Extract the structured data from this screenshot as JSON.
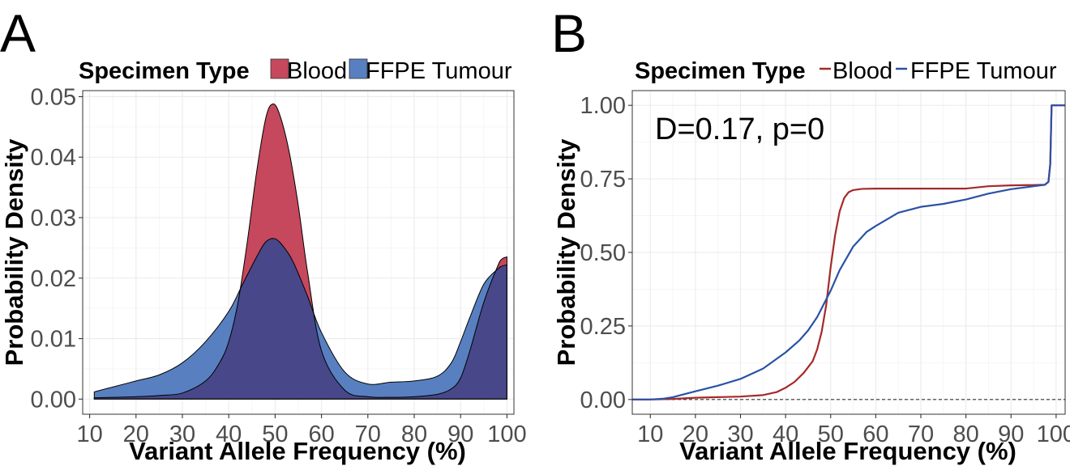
{
  "chart_data": [
    {
      "panel_label": "A",
      "type": "area",
      "title": "",
      "xlabel": "Variant Allele Frequency (%)",
      "ylabel": "Probability Density",
      "xlim": [
        10,
        100
      ],
      "ylim": [
        0,
        0.05
      ],
      "x_ticks": [
        "10",
        "20",
        "30",
        "40",
        "50",
        "60",
        "70",
        "80",
        "90",
        "100"
      ],
      "y_ticks": [
        "0.00",
        "0.01",
        "0.02",
        "0.03",
        "0.04",
        "0.05"
      ],
      "grid": true,
      "legend": {
        "title": "Specimen Type",
        "position": "top",
        "entries": [
          {
            "label": "Blood",
            "color": "#c5485c"
          },
          {
            "label": "FFPE Tumour",
            "color": "#5880c0"
          }
        ]
      },
      "overlap_color": "#47478a",
      "series": [
        {
          "name": "Blood",
          "color": "#c5485c",
          "x": [
            11,
            15,
            20,
            25,
            30,
            35,
            38,
            40,
            42,
            44,
            46,
            48,
            49.5,
            51,
            53,
            55,
            57,
            60,
            65,
            70,
            75,
            80,
            85,
            88,
            90,
            92,
            95,
            98,
            99,
            100
          ],
          "values": [
            0.0002,
            0.0003,
            0.0004,
            0.0006,
            0.001,
            0.003,
            0.006,
            0.0095,
            0.016,
            0.026,
            0.0375,
            0.0465,
            0.0488,
            0.047,
            0.041,
            0.032,
            0.021,
            0.008,
            0.0015,
            0.0004,
            0.0003,
            0.0004,
            0.0008,
            0.0017,
            0.0035,
            0.008,
            0.016,
            0.022,
            0.0232,
            0.0235
          ]
        },
        {
          "name": "FFPE Tumour",
          "color": "#5880c0",
          "x": [
            11,
            15,
            20,
            25,
            30,
            35,
            40,
            43,
            46,
            48,
            50,
            52,
            54,
            57,
            60,
            65,
            70,
            75,
            80,
            85,
            88,
            90,
            92,
            95,
            98,
            99,
            100
          ],
          "values": [
            0.0012,
            0.002,
            0.003,
            0.004,
            0.006,
            0.0095,
            0.0145,
            0.019,
            0.0235,
            0.026,
            0.0265,
            0.025,
            0.0225,
            0.017,
            0.011,
            0.0045,
            0.0025,
            0.0028,
            0.003,
            0.0038,
            0.006,
            0.0095,
            0.0135,
            0.019,
            0.0215,
            0.022,
            0.0222
          ]
        }
      ]
    },
    {
      "panel_label": "B",
      "type": "line",
      "title": "",
      "xlabel": "Variant Allele Frequency (%)",
      "ylabel": "Probability Density",
      "xlim": [
        6,
        102
      ],
      "ylim": [
        0,
        1
      ],
      "x_ticks": [
        "10",
        "20",
        "30",
        "40",
        "50",
        "60",
        "70",
        "80",
        "90",
        "100"
      ],
      "y_ticks": [
        "0.00",
        "0.25",
        "0.50",
        "0.75",
        "1.00"
      ],
      "grid": true,
      "annotation": "D=0.17, p=0",
      "reference_line": {
        "y": 0,
        "style": "dashed"
      },
      "legend": {
        "title": "Specimen Type",
        "position": "top",
        "entries": [
          {
            "label": "Blood",
            "color": "#a52a2a"
          },
          {
            "label": "FFPE Tumour",
            "color": "#2a52a5"
          }
        ]
      },
      "series": [
        {
          "name": "Blood",
          "color": "#a52a2a",
          "x": [
            6,
            10,
            15,
            20,
            25,
            30,
            35,
            38,
            40,
            42,
            44,
            46,
            47,
            48,
            49,
            50,
            51,
            52,
            53,
            54,
            55,
            57,
            60,
            70,
            80,
            85,
            90,
            95,
            97.5,
            98.3,
            98.7,
            99,
            100,
            102
          ],
          "values": [
            0,
            0,
            0.002,
            0.006,
            0.008,
            0.01,
            0.015,
            0.025,
            0.04,
            0.06,
            0.09,
            0.13,
            0.17,
            0.23,
            0.32,
            0.45,
            0.56,
            0.64,
            0.685,
            0.705,
            0.712,
            0.716,
            0.717,
            0.717,
            0.717,
            0.725,
            0.728,
            0.729,
            0.73,
            0.74,
            0.8,
            1.0,
            1.0,
            1.0
          ]
        },
        {
          "name": "FFPE Tumour",
          "color": "#2a52a5",
          "x": [
            6,
            10,
            13,
            15,
            18,
            20,
            25,
            30,
            35,
            40,
            43,
            45,
            47,
            48,
            50,
            52,
            55,
            58,
            60,
            65,
            70,
            75,
            80,
            85,
            90,
            95,
            97.5,
            98.3,
            98.7,
            99,
            100,
            102
          ],
          "values": [
            0,
            0,
            0.003,
            0.008,
            0.02,
            0.028,
            0.047,
            0.07,
            0.105,
            0.16,
            0.2,
            0.235,
            0.28,
            0.31,
            0.37,
            0.44,
            0.52,
            0.57,
            0.59,
            0.635,
            0.655,
            0.665,
            0.68,
            0.7,
            0.715,
            0.725,
            0.73,
            0.74,
            0.8,
            1.0,
            1.0,
            1.0
          ]
        }
      ]
    }
  ]
}
